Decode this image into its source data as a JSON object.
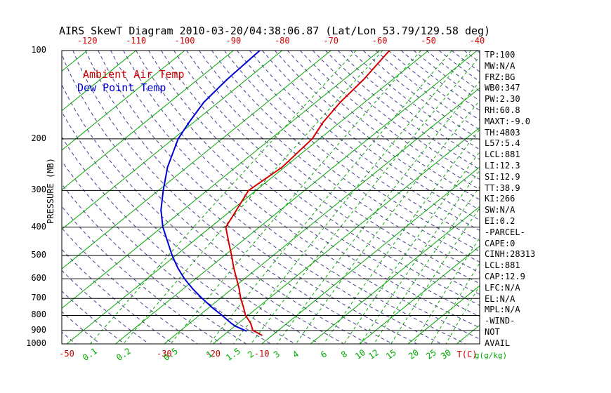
{
  "chart_data": {
    "type": "line",
    "variant": "skew-t-log-p",
    "title": "AIRS SkewT Diagram 2010-03-20/04:38:06.87 (Lat/Lon 53.79/129.58 deg)",
    "ylabel": "PRESSURE (MB)",
    "xlabel_temp_unit": "T(C)",
    "xlabel_mixing_unit": "g(g/kg)",
    "pressure_range": [
      100,
      1000
    ],
    "pressure_ticks": [
      100,
      200,
      300,
      400,
      500,
      600,
      700,
      800,
      900,
      1000
    ],
    "top_temp_ticks_c": [
      -120,
      -110,
      -100,
      -90,
      -80,
      -70,
      -60,
      -50,
      -40
    ],
    "bottom_temp_ticks_c": [
      -50,
      -30,
      -20,
      -10
    ],
    "mixing_ratio_ticks_gkg": [
      "0.1",
      "0.2",
      "0.5",
      "1",
      "1.5",
      "2",
      "3",
      "4",
      "6",
      "8",
      "10",
      "12",
      "15",
      "20",
      "25",
      "30"
    ],
    "grid": {
      "isotherms_c": {
        "min": -140,
        "max": 40,
        "step": 10
      },
      "dry_adiabats_k": {
        "min": 220,
        "max": 450,
        "step": 5
      },
      "horizontal_pressure_lines": true,
      "legend_position": "top-left-inside"
    },
    "series": [
      {
        "name": "Ambient Air Temp",
        "color": "#d40000",
        "points_p_t": [
          [
            100,
            -58
          ],
          [
            125,
            -56
          ],
          [
            150,
            -55
          ],
          [
            175,
            -53.5
          ],
          [
            200,
            -51.5
          ],
          [
            250,
            -50.5
          ],
          [
            300,
            -51.5
          ],
          [
            350,
            -49
          ],
          [
            400,
            -46.9
          ],
          [
            450,
            -42.5
          ],
          [
            500,
            -38.5
          ],
          [
            550,
            -35
          ],
          [
            600,
            -31.6
          ],
          [
            650,
            -28.5
          ],
          [
            700,
            -25.8
          ],
          [
            750,
            -23
          ],
          [
            800,
            -20.5
          ],
          [
            850,
            -17.5
          ],
          [
            900,
            -15.2
          ],
          [
            936,
            -12
          ]
        ]
      },
      {
        "name": "Dew Point Temp",
        "color": "#0000d4",
        "points_p_t": [
          [
            100,
            -84.6
          ],
          [
            125,
            -84
          ],
          [
            150,
            -83
          ],
          [
            175,
            -81
          ],
          [
            200,
            -79
          ],
          [
            250,
            -74
          ],
          [
            300,
            -69
          ],
          [
            350,
            -64.5
          ],
          [
            400,
            -59.8
          ],
          [
            450,
            -55
          ],
          [
            500,
            -50.7
          ],
          [
            550,
            -46.5
          ],
          [
            600,
            -42.3
          ],
          [
            650,
            -38
          ],
          [
            700,
            -33.7
          ],
          [
            750,
            -29.5
          ],
          [
            800,
            -25.3
          ],
          [
            850,
            -21.5
          ],
          [
            870,
            -19.9
          ],
          [
            905,
            -16.3
          ]
        ]
      }
    ],
    "colors": {
      "isotherm": "#00a800",
      "mixing_ratio_line": "#00a800",
      "dry_adiabat": "#483d8b",
      "axis_line": "#000000",
      "top_tick_text": "#d40000",
      "bottom_temp_tick_text": "#c00000",
      "mixing_tick_text": "#00a800",
      "pressure_tick_text": "#000000",
      "title_text": "#000000"
    }
  },
  "stats_panel": {
    "lines": [
      "TP:100",
      "MW:N/A",
      "FRZ:BG",
      "WB0:347",
      "PW:2.30",
      "RH:60.8",
      "MAXT:-9.0",
      "TH:4803",
      "L57:5.4",
      "LCL:881",
      "LI:12.3",
      "SI:12.9",
      "TT:38.9",
      "KI:266",
      "SW:N/A",
      "EI:0.2",
      "-PARCEL-",
      "CAPE:0",
      "CINH:28313",
      "LCL:881",
      "CAP:12.9",
      "LFC:N/A",
      "EL:N/A",
      "MPL:N/A",
      "-WIND-",
      "NOT",
      "AVAIL"
    ]
  }
}
